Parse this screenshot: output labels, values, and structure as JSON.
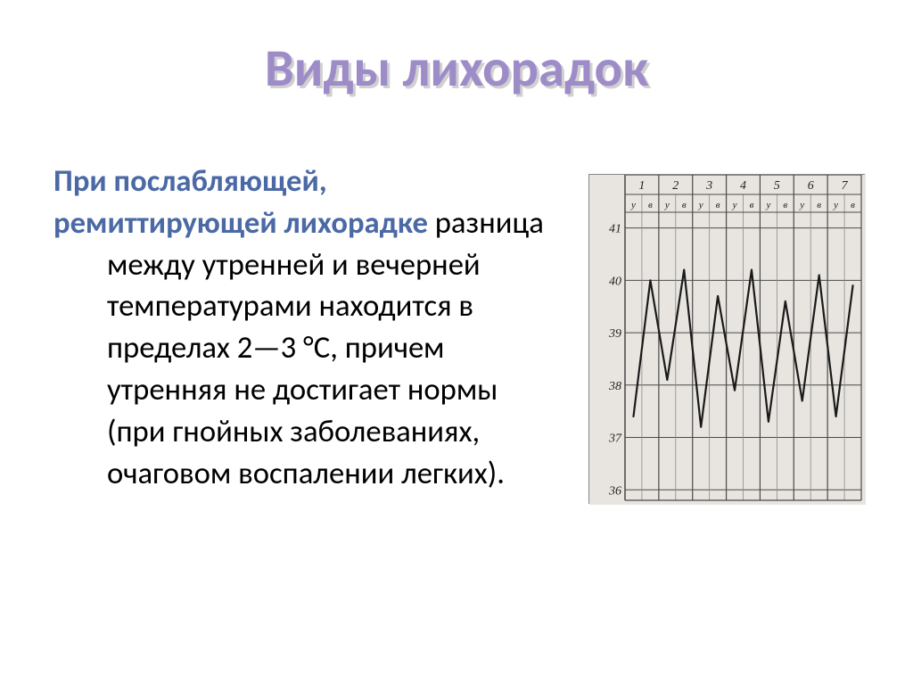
{
  "title": "Виды лихорадок",
  "title_fontsize_pt": 44,
  "title_color": "#9e8cc8",
  "title_shadow_color": "#d0d0d0",
  "lead1": "При послабляющей,",
  "lead2": "ремиттирующей лихорадке",
  "lead_color": "#4a69a5",
  "body_rest": " разница между утренней и вечерней температурами находится в пределах 2—3 °С, причем утренняя не достигает нормы (при гнойных заболеваниях, очаговом воспалении легких).",
  "body_fontsize_pt": 26,
  "body_color": "#000000",
  "fever_chart": {
    "type": "line",
    "days": [
      1,
      2,
      3,
      4,
      5,
      6,
      7
    ],
    "sub_headers": [
      "у",
      "в"
    ],
    "y_ticks": [
      36,
      37,
      38,
      39,
      40,
      41
    ],
    "ylim": [
      35.8,
      41.3
    ],
    "data_points": [
      {
        "day": 1,
        "time": "у",
        "temp": 37.4
      },
      {
        "day": 1,
        "time": "в",
        "temp": 40.0
      },
      {
        "day": 2,
        "time": "у",
        "temp": 38.1
      },
      {
        "day": 2,
        "time": "в",
        "temp": 40.2
      },
      {
        "day": 3,
        "time": "у",
        "temp": 37.2
      },
      {
        "day": 3,
        "time": "в",
        "temp": 39.7
      },
      {
        "day": 4,
        "time": "у",
        "temp": 37.9
      },
      {
        "day": 4,
        "time": "в",
        "temp": 40.2
      },
      {
        "day": 5,
        "time": "у",
        "temp": 37.3
      },
      {
        "day": 5,
        "time": "в",
        "temp": 39.6
      },
      {
        "day": 6,
        "time": "у",
        "temp": 37.7
      },
      {
        "day": 6,
        "time": "в",
        "temp": 40.1
      },
      {
        "day": 7,
        "time": "у",
        "temp": 37.4
      },
      {
        "day": 7,
        "time": "в",
        "temp": 39.9
      }
    ],
    "line_color": "#1a1a1a",
    "line_width": 2.2,
    "grid_major_color": "#4a4a4a",
    "grid_minor_color": "#8a8a8a",
    "background_color": "#e8e5e0",
    "axis_label_fontsize": 14,
    "header_fontsize": 14,
    "subheader_fontsize": 11
  }
}
